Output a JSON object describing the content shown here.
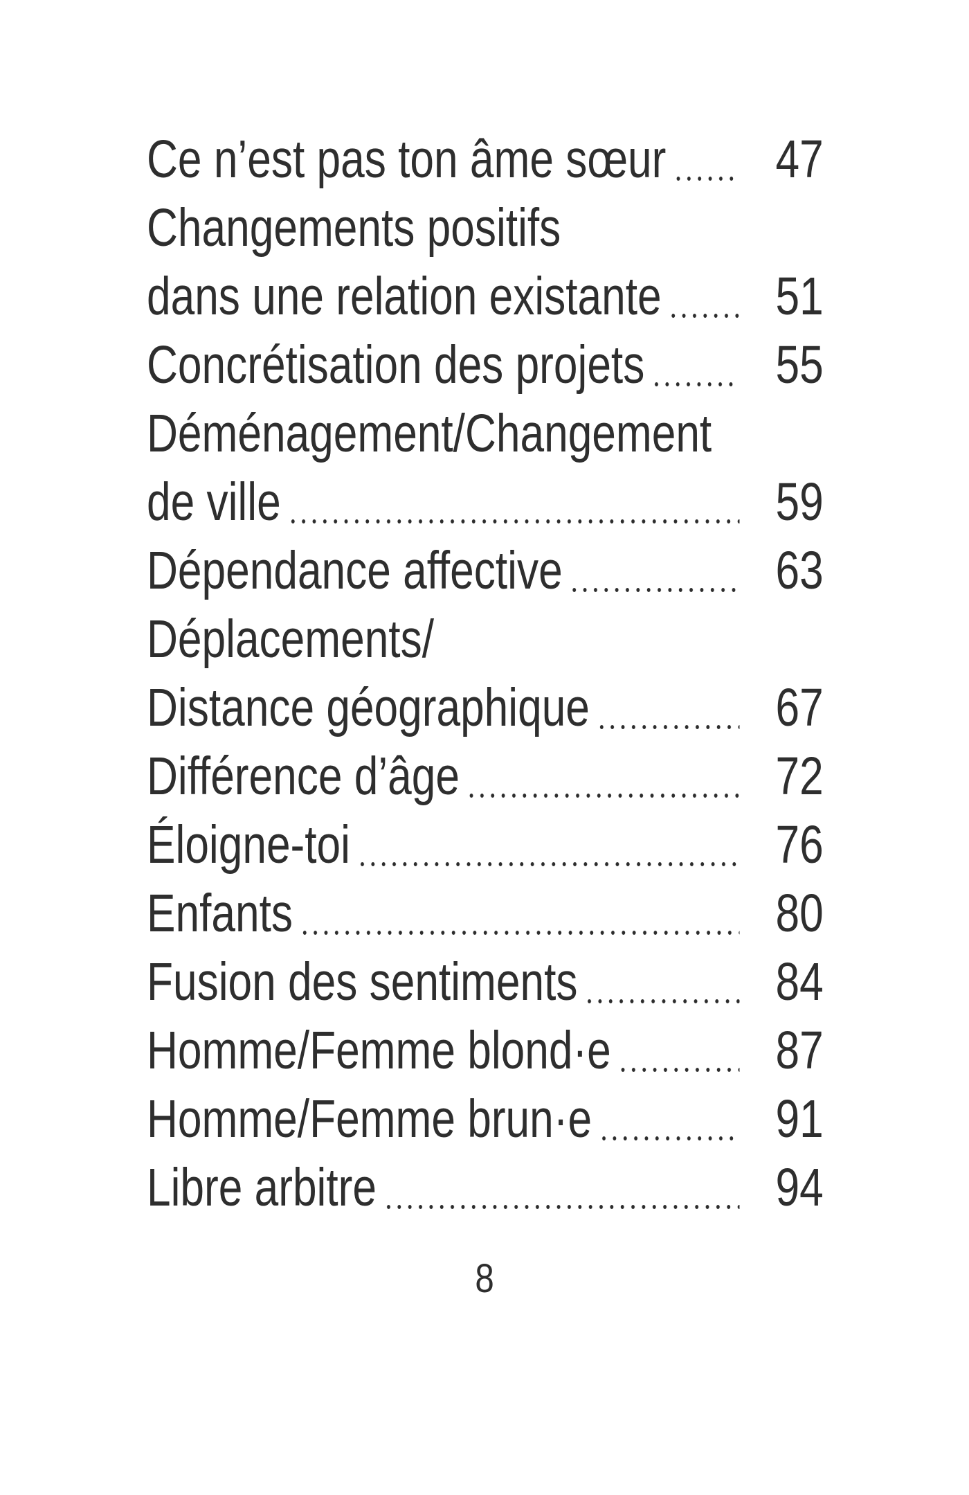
{
  "toc": {
    "lines": [
      {
        "text": "Ce n’est pas ton âme sœur",
        "page": "47"
      },
      {
        "text": "Changements positifs",
        "page": ""
      },
      {
        "text": "dans une relation existante",
        "page": "51"
      },
      {
        "text": "Concrétisation des projets",
        "page": "55"
      },
      {
        "text": "Déménagement/Changement",
        "page": ""
      },
      {
        "text": "de ville",
        "page": "59"
      },
      {
        "text": "Dépendance affective",
        "page": "63"
      },
      {
        "text": "Déplacements/",
        "page": ""
      },
      {
        "text": "Distance géographique",
        "page": "67"
      },
      {
        "text": "Différence d’âge",
        "page": "72"
      },
      {
        "text": "Éloigne-toi",
        "page": "76"
      },
      {
        "text": "Enfants",
        "page": "80"
      },
      {
        "text": "Fusion des sentiments",
        "page": "84"
      },
      {
        "text": "Homme/Femme blond·e",
        "page": "87"
      },
      {
        "text": "Homme/Femme brun·e",
        "page": "91"
      },
      {
        "text": "Libre arbitre",
        "page": "94"
      }
    ]
  },
  "footer": {
    "page_number": "8"
  }
}
